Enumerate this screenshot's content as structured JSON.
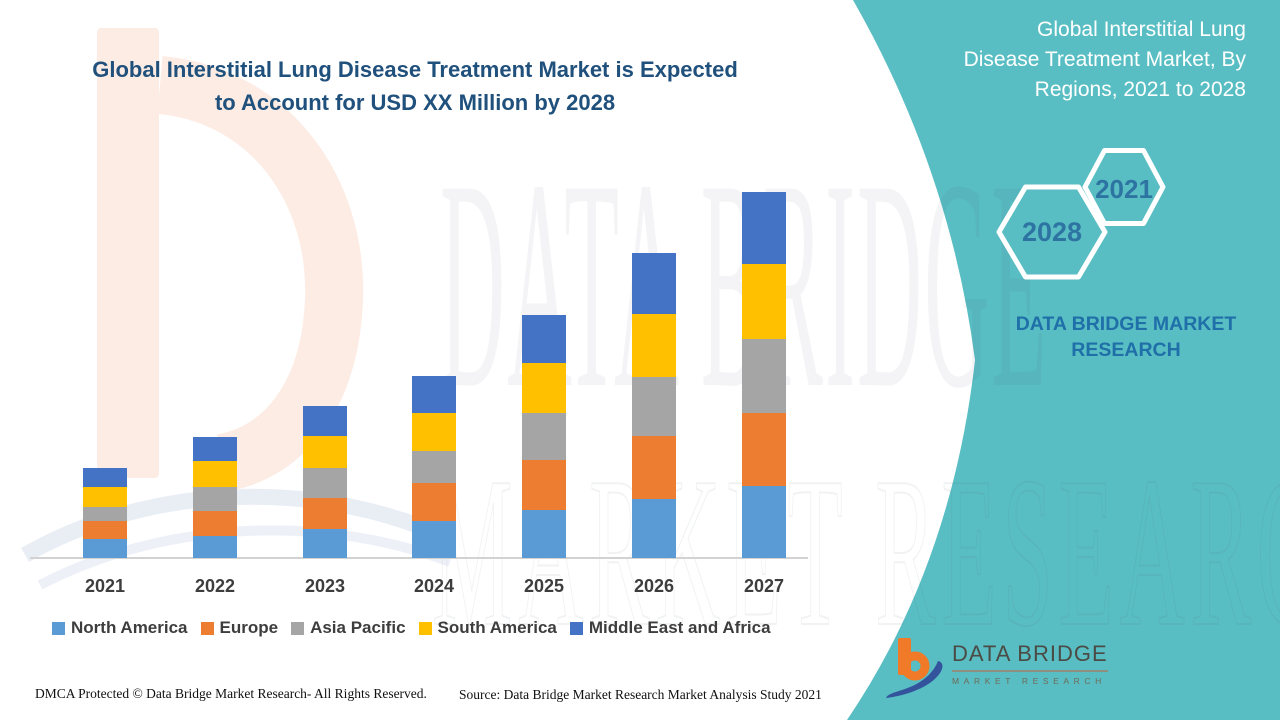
{
  "header": {
    "title_lines": [
      "Global Interstitial Lung Disease Treatment Market is Expected",
      "to Account for USD XX Million by 2028"
    ]
  },
  "right_panel": {
    "title_lines": [
      "Global Interstitial Lung",
      "Disease Treatment Market, By",
      "Regions, 2021 to 2028"
    ],
    "hexagons": [
      {
        "label": "2028"
      },
      {
        "label": "2021"
      }
    ],
    "brand_tagline": "DATA BRIDGE MARKET RESEARCH",
    "colors": {
      "background": "#59BEC3",
      "hex_outline": "#FFFFFF",
      "hex_label": "#2E74A3",
      "tagline": "#1F6FA8"
    }
  },
  "chart_data": {
    "type": "bar",
    "stacked": true,
    "title": "Global Interstitial Lung Disease Treatment Market, By Regions, 2021 to 2028",
    "xlabel": "",
    "ylabel": "",
    "value_axis": "unlabeled (USD XX Million)",
    "grid": false,
    "legend_position": "bottom",
    "categories": [
      "2021",
      "2022",
      "2023",
      "2024",
      "2025",
      "2026",
      "2027"
    ],
    "series": [
      {
        "name": "North America",
        "color": "#5B9BD5",
        "values": [
          19,
          22,
          29,
          37,
          48,
          59,
          72
        ]
      },
      {
        "name": "Europe",
        "color": "#ED7D31",
        "values": [
          18,
          25,
          31,
          38,
          50,
          63,
          73
        ]
      },
      {
        "name": "Asia Pacific",
        "color": "#A5A5A5",
        "values": [
          14,
          24,
          30,
          32,
          47,
          59,
          74
        ]
      },
      {
        "name": "South America",
        "color": "#FFC000",
        "values": [
          20,
          26,
          32,
          38,
          50,
          63,
          75
        ]
      },
      {
        "name": "Middle East and Africa",
        "color": "#4472C4",
        "values": [
          19,
          24,
          30,
          37,
          48,
          61,
          72
        ]
      }
    ]
  },
  "watermark": {
    "row1": "DATA BRIDGE",
    "row2": "MARKET RESEARCH"
  },
  "footer": {
    "dmca": "DMCA Protected © Data Bridge Market Research- All Rights Reserved.",
    "source": "Source: Data Bridge Market Research Market Analysis Study 2021"
  },
  "logo": {
    "name": "DATA BRIDGE",
    "subtitle": "MARKET RESEARCH"
  }
}
